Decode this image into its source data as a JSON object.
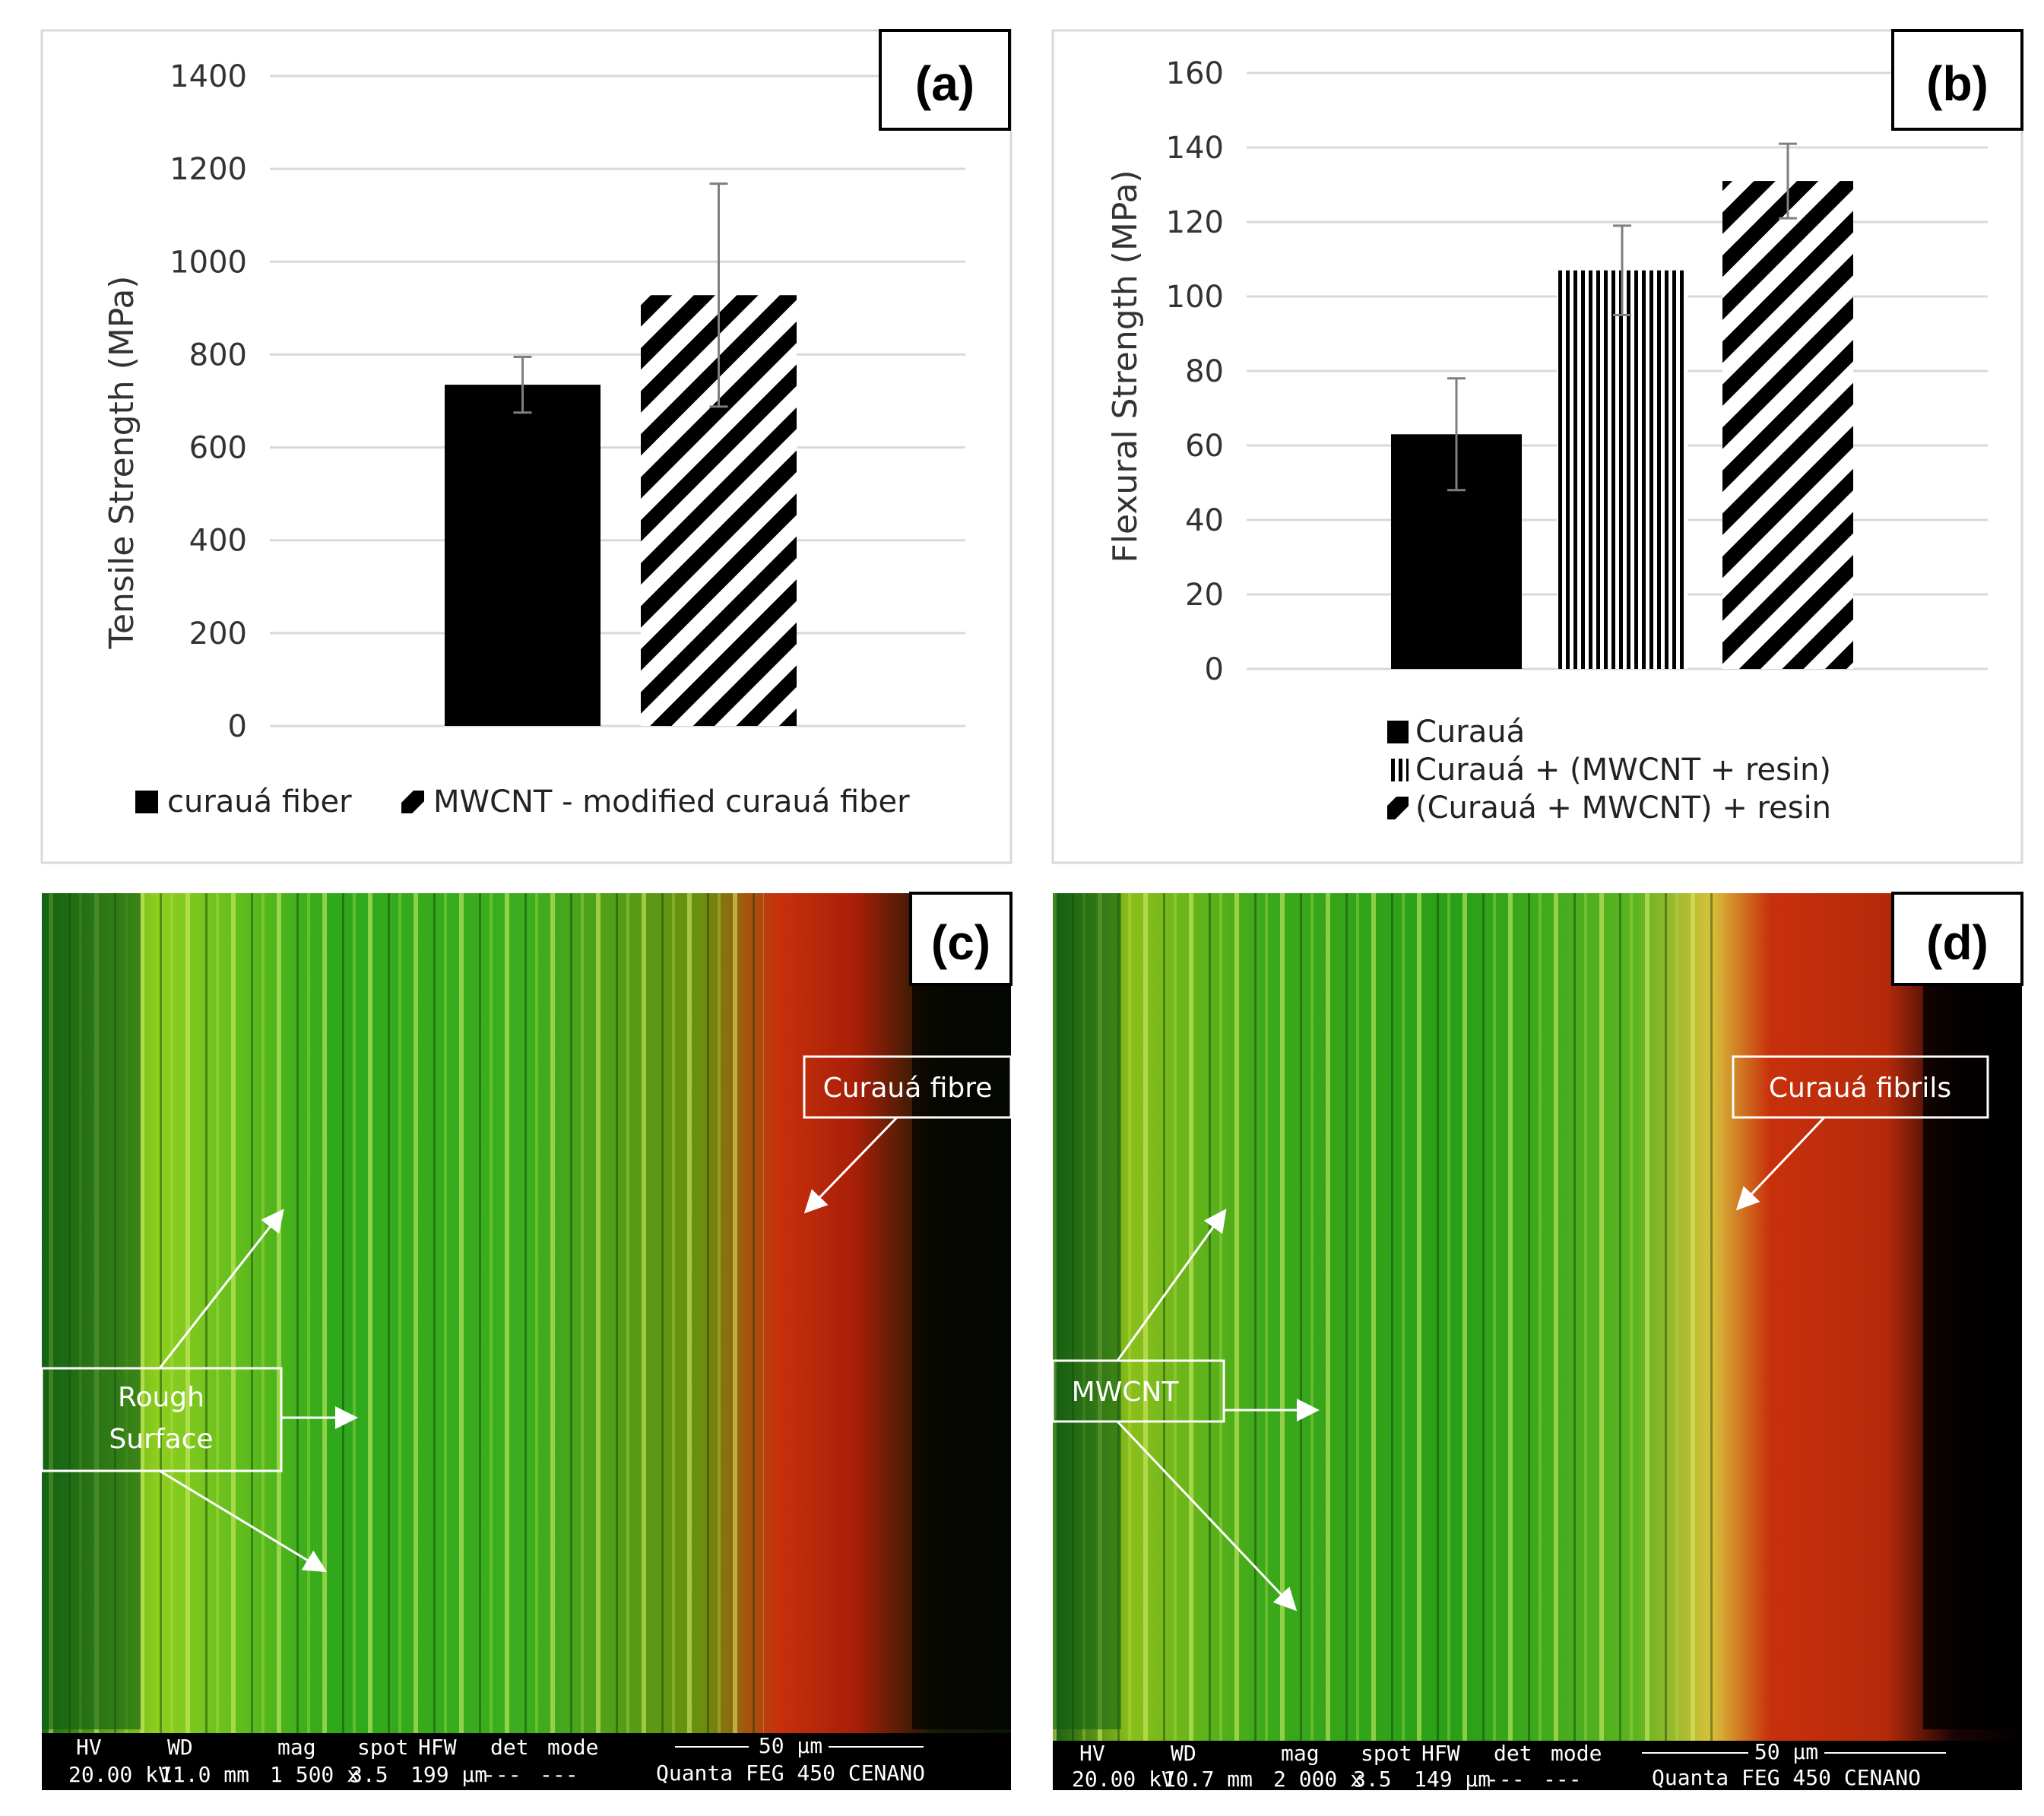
{
  "chart_data": [
    {
      "panel": "(a)",
      "type": "bar",
      "ylabel": "Tensile Strength (MPa)",
      "xlabel": "",
      "ylim": [
        0,
        1400
      ],
      "yticks": [
        0,
        200,
        400,
        600,
        800,
        1000,
        1200,
        1400
      ],
      "grid": true,
      "series": [
        {
          "name": "curauá fiber",
          "value": 735,
          "error": 60,
          "pattern": "solid"
        },
        {
          "name": "MWCNT - modified curauá fiber",
          "value": 928,
          "error": 240,
          "pattern": "diagonal"
        }
      ],
      "legend": [
        "curauá fiber",
        "MWCNT - modified curauá fiber"
      ],
      "legend_position": "bottom"
    },
    {
      "panel": "(b)",
      "type": "bar",
      "ylabel": "Flexural  Strength  (MPa)",
      "xlabel": "",
      "ylim": [
        0,
        160
      ],
      "yticks": [
        0,
        20,
        40,
        60,
        80,
        100,
        120,
        140,
        160
      ],
      "grid": true,
      "series": [
        {
          "name": "Curauá",
          "value": 63,
          "error": 15,
          "pattern": "solid"
        },
        {
          "name": "Curauá + (MWCNT + resin)",
          "value": 107,
          "error": 12,
          "pattern": "vertical"
        },
        {
          "name": "(Curauá + MWCNT) + resin",
          "value": 131,
          "error": 10,
          "pattern": "diagonal"
        }
      ],
      "legend": [
        "Curauá",
        "Curauá + (MWCNT + resin)",
        "(Curauá + MWCNT) + resin"
      ],
      "legend_position": "bottom"
    }
  ],
  "panels": {
    "c": {
      "label": "(c)",
      "callouts": [
        "Curauá fibre",
        "Rough",
        "Surface"
      ],
      "scale_bar": "50 µm",
      "info_headers": [
        "HV",
        "WD",
        "mag",
        "spot",
        "HFW",
        "det",
        "mode"
      ],
      "info_values": [
        "20.00 kV",
        "11.0 mm",
        "1 500 x",
        "3.5",
        "199 µm",
        "---",
        "---"
      ],
      "instrument": "Quanta FEG 450 CENANO"
    },
    "d": {
      "label": "(d)",
      "callouts": [
        "Curauá fibrils",
        "MWCNT"
      ],
      "scale_bar": "50 µm",
      "info_headers": [
        "HV",
        "WD",
        "mag",
        "spot",
        "HFW",
        "det",
        "mode"
      ],
      "info_values": [
        "20.00 kV",
        "10.7 mm",
        "2 000 x",
        "3.5",
        "149 µm",
        "---",
        "---"
      ],
      "instrument": "Quanta FEG 450 CENANO"
    }
  },
  "colors": {
    "bar": "#000000",
    "grid": "#d9d9d9",
    "error": "#7f7f7f",
    "green": "#2fa81b",
    "red": "#c8300c"
  }
}
